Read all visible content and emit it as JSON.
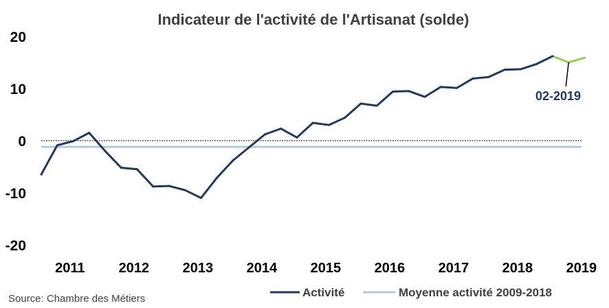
{
  "chart_data": {
    "type": "line",
    "title": "Indicateur de l'activité de l'Artisanat (solde)",
    "ylim": [
      -20,
      20
    ],
    "yticks": [
      "20",
      "10",
      "0",
      "-10",
      "-20"
    ],
    "xticks": [
      "2011",
      "2012",
      "2013",
      "2014",
      "2015",
      "2016",
      "2017",
      "2018",
      "2019"
    ],
    "grid": false,
    "legend_position": "bottom-right",
    "series": [
      {
        "name": "Activité",
        "color": "#1f3864",
        "x": [
          "2010-T4",
          "2011-T1",
          "2011-T2",
          "2011-T3",
          "2011-T4",
          "2012-T1",
          "2012-T2",
          "2012-T3",
          "2012-T4",
          "2013-T1",
          "2013-T2",
          "2013-T3",
          "2013-T4",
          "2014-T1",
          "2014-T2",
          "2014-T3",
          "2014-T4",
          "2015-T1",
          "2015-T2",
          "2015-T3",
          "2015-T4",
          "2016-T1",
          "2016-T2",
          "2016-T3",
          "2016-T4",
          "2017-T1",
          "2017-T2",
          "2017-T3",
          "2017-T4",
          "2018-T1",
          "2018-T2",
          "2018-T3",
          "2018-T4"
        ],
        "values": [
          -6.5,
          -0.9,
          -0.1,
          1.5,
          -2.0,
          -5.2,
          -5.5,
          -8.8,
          -8.7,
          -9.5,
          -11.0,
          -7.1,
          -3.8,
          -1.3,
          1.2,
          2.3,
          0.6,
          3.4,
          3.0,
          4.4,
          7.1,
          6.7,
          9.4,
          9.5,
          8.4,
          10.3,
          10.1,
          11.9,
          12.2,
          13.6,
          13.7,
          14.7,
          16.2
        ]
      },
      {
        "name": "",
        "color": "#92d050",
        "x": [
          "2019-T1",
          "2019-T2"
        ],
        "values": [
          15.0,
          15.9
        ]
      },
      {
        "name": "Moyenne activité 2009-2018",
        "color": "#b4c7e7",
        "value": -1.2
      }
    ],
    "annotations": [
      {
        "text": "02-2019",
        "color": "#1f3864"
      }
    ],
    "source": "Source: Chambre des Métiers"
  }
}
